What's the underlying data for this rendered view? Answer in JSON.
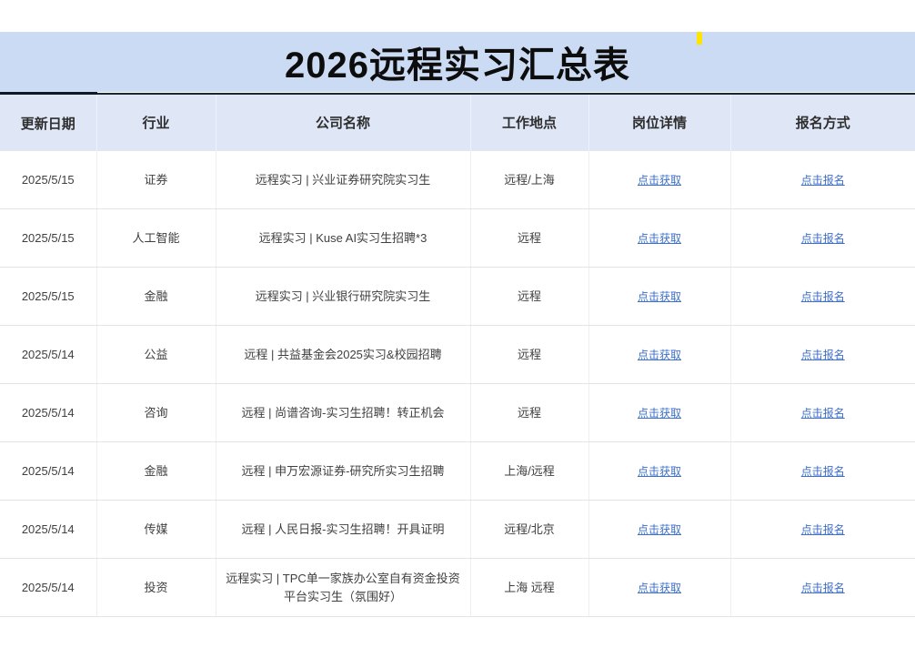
{
  "page": {
    "title": "2026远程实习汇总表"
  },
  "decorations": {
    "highlight_mark": "yellow-mark-top-right"
  },
  "colors": {
    "banner_bg": "#ccdbf4",
    "header_bg": "#dfe7f7",
    "header_top_border": "#1c2633",
    "link_blue": "#3e6fc8",
    "grid_line": "#e4e4e4",
    "body_text": "#3f3f3f",
    "title_text": "#0d0d0d",
    "highlight_yellow": "#ffe400"
  },
  "table": {
    "columns": [
      {
        "key": "date",
        "label": "更新日期"
      },
      {
        "key": "industry",
        "label": "行业"
      },
      {
        "key": "company",
        "label": "公司名称"
      },
      {
        "key": "location",
        "label": "工作地点"
      },
      {
        "key": "details",
        "label": "岗位详情"
      },
      {
        "key": "apply",
        "label": "报名方式"
      }
    ],
    "rows": [
      {
        "date": "2025/5/15",
        "industry": "证券",
        "company": "远程实习 | 兴业证券研究院实习生",
        "location": "远程/上海",
        "details": "点击获取",
        "apply": "点击报名"
      },
      {
        "date": "2025/5/15",
        "industry": "人工智能",
        "company": "远程实习 | Kuse AI实习生招聘*3",
        "location": "远程",
        "details": "点击获取",
        "apply": "点击报名"
      },
      {
        "date": "2025/5/15",
        "industry": "金融",
        "company": "远程实习 | 兴业银行研究院实习生",
        "location": "远程",
        "details": "点击获取",
        "apply": "点击报名"
      },
      {
        "date": "2025/5/14",
        "industry": "公益",
        "company": "远程 | 共益基金会2025实习&校园招聘",
        "location": "远程",
        "details": "点击获取",
        "apply": "点击报名"
      },
      {
        "date": "2025/5/14",
        "industry": "咨询",
        "company": "远程 | 尚谱咨询-实习生招聘！转正机会",
        "location": "远程",
        "details": "点击获取",
        "apply": "点击报名"
      },
      {
        "date": "2025/5/14",
        "industry": "金融",
        "company": "远程 | 申万宏源证券-研究所实习生招聘",
        "location": "上海/远程",
        "details": "点击获取",
        "apply": "点击报名"
      },
      {
        "date": "2025/5/14",
        "industry": "传媒",
        "company": "远程 | 人民日报-实习生招聘！开具证明",
        "location": "远程/北京",
        "details": "点击获取",
        "apply": "点击报名"
      },
      {
        "date": "2025/5/14",
        "industry": "投资",
        "company": "远程实习 | TPC单一家族办公室自有资金投资平台实习生（氛围好）",
        "location": "上海 远程",
        "details": "点击获取",
        "apply": "点击报名"
      }
    ]
  }
}
